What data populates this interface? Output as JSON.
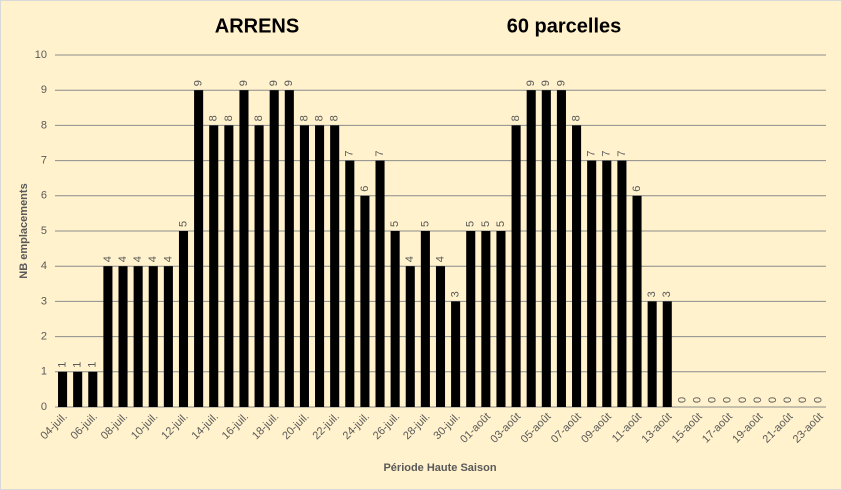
{
  "chart_data": {
    "type": "bar",
    "title": "ARRENS",
    "subtitle": "60 parcelles",
    "x_label": "Période Haute Saison",
    "y_label": "NB emplacements",
    "categories": [
      "04-juil.",
      null,
      "06-juil.",
      null,
      "08-juil.",
      null,
      "10-juil.",
      null,
      "12-juil.",
      null,
      "14-juil.",
      null,
      "16-juil.",
      null,
      "18-juil.",
      null,
      "20-juil.",
      null,
      "22-juil.",
      null,
      "24-juil.",
      null,
      "26-juil.",
      null,
      "28-juil.",
      null,
      "30-juil.",
      null,
      "01-août",
      null,
      "03-août",
      null,
      "05-août",
      null,
      "07-août",
      null,
      "09-août",
      null,
      "11-août",
      null,
      "13-août",
      null,
      "15-août",
      null,
      "17-août",
      null,
      "19-août",
      null,
      "21-août",
      null,
      "23-août"
    ],
    "values": [
      1,
      1,
      1,
      4,
      4,
      4,
      4,
      4,
      5,
      9,
      8,
      8,
      9,
      8,
      9,
      9,
      8,
      8,
      8,
      7,
      6,
      7,
      5,
      4,
      5,
      4,
      3,
      5,
      5,
      5,
      8,
      9,
      9,
      9,
      8,
      7,
      7,
      7,
      6,
      3,
      3,
      0,
      0,
      0,
      0,
      0,
      0,
      0,
      0,
      0,
      0
    ],
    "color": "#000000",
    "ylim": [
      0,
      10
    ],
    "yticks": [
      0,
      1,
      2,
      3,
      4,
      5,
      6,
      7,
      8,
      9,
      10
    ],
    "grid": true
  }
}
